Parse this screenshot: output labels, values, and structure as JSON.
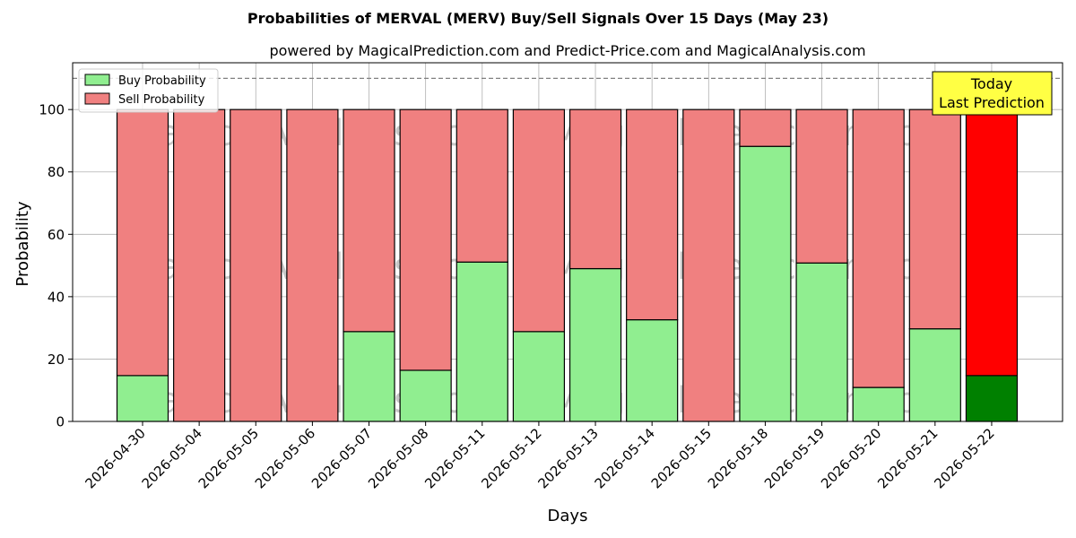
{
  "chart_data": {
    "type": "bar",
    "title": "Probabilities of MERVAL (MERV) Buy/Sell Signals Over 15 Days (May 23)",
    "subtitle": "powered by MagicalPrediction.com and Predict-Price.com and MagicalAnalysis.com",
    "xlabel": "Days",
    "ylabel": "Probability",
    "ylim": [
      0,
      115
    ],
    "yticks": [
      0,
      20,
      40,
      60,
      80,
      100
    ],
    "reference_line": 110,
    "grid": true,
    "legend_position": "top-left",
    "categories": [
      "2026-04-30",
      "2026-05-04",
      "2026-05-05",
      "2026-05-06",
      "2026-05-07",
      "2026-05-08",
      "2026-05-11",
      "2026-05-12",
      "2026-05-13",
      "2026-05-14",
      "2026-05-15",
      "2026-05-18",
      "2026-05-19",
      "2026-05-20",
      "2026-05-21",
      "2026-05-22"
    ],
    "series": [
      {
        "name": "Buy Probability",
        "color": "#90EE90",
        "values": [
          14.7,
          0,
          0,
          0,
          28.8,
          16.4,
          51.1,
          28.8,
          49.0,
          32.6,
          0,
          88.2,
          50.8,
          10.9,
          29.7,
          14.7
        ]
      },
      {
        "name": "Sell Probability",
        "color": "#F08080",
        "values": [
          85.3,
          100,
          100,
          100,
          71.2,
          83.6,
          48.9,
          71.2,
          51.0,
          67.4,
          100,
          11.8,
          49.2,
          89.1,
          70.3,
          85.3
        ]
      }
    ],
    "highlight": {
      "index": 15,
      "buy_color": "#008000",
      "sell_color": "#FF0000"
    },
    "annotation": {
      "lines": [
        "Today",
        "Last Prediction"
      ],
      "bg_color": "#FFFF44"
    },
    "watermarks": [
      "MagicalAnalysis.com",
      "MagicalPrediction.com"
    ]
  }
}
